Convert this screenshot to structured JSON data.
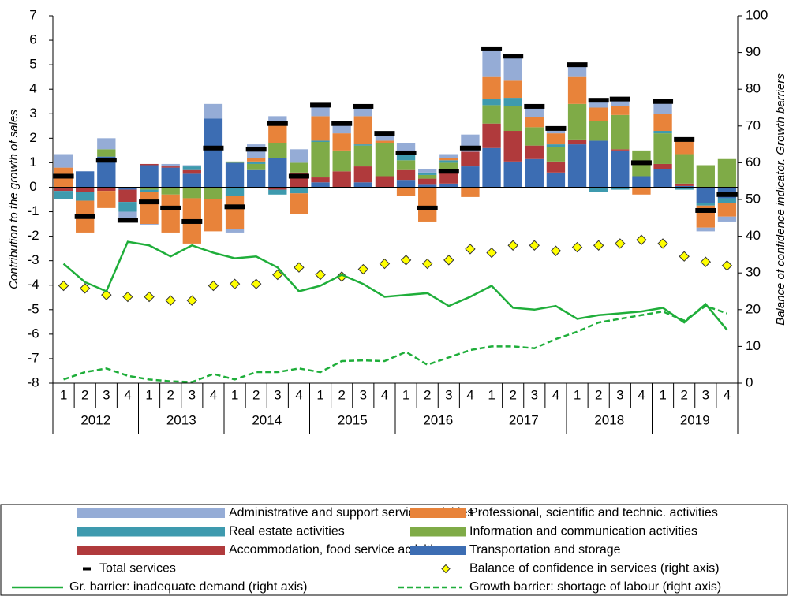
{
  "chart_data": {
    "type": "bar",
    "stacked": true,
    "ylabel": "Contribution to the growth of sales",
    "y2label": "Balance of confidence indicator. Growth barriers",
    "categories": [
      "1",
      "2",
      "3",
      "4",
      "1",
      "2",
      "3",
      "4",
      "1",
      "2",
      "3",
      "4",
      "1",
      "2",
      "3",
      "4",
      "1",
      "2",
      "3",
      "4",
      "1",
      "2",
      "3",
      "4",
      "1",
      "2",
      "3",
      "4",
      "1",
      "2",
      "3",
      "4"
    ],
    "years": [
      "2012",
      "2013",
      "2014",
      "2015",
      "2016",
      "2017",
      "2018",
      "2019"
    ],
    "ylim": [
      -8,
      7
    ],
    "yticks": [
      -8,
      -7,
      -6,
      -5,
      -4,
      -3,
      -2,
      -1,
      0,
      1,
      2,
      3,
      4,
      5,
      6,
      7
    ],
    "y2lim": [
      0,
      100
    ],
    "y2ticks": [
      0,
      10,
      20,
      30,
      40,
      50,
      60,
      70,
      80,
      90,
      100
    ],
    "series": [
      {
        "name": "Administrative and support service activities",
        "type": "bar",
        "color": "#95acd6",
        "values": [
          0.55,
          0,
          0.45,
          -0.35,
          -0.05,
          0.1,
          0.05,
          0.6,
          -0.15,
          0.55,
          0.3,
          0.55,
          0.5,
          0.45,
          0.4,
          0.3,
          0.45,
          0.15,
          0.15,
          0.7,
          1.15,
          1.05,
          0.5,
          0.25,
          0.5,
          0.35,
          0.35,
          0,
          0.5,
          0.1,
          -0.15,
          -0.2
        ]
      },
      {
        "name": "Professional, scientific and technic. activities",
        "type": "bar",
        "color": "#e8833a",
        "values": [
          0.8,
          -1.3,
          -0.7,
          0,
          -1.3,
          -1.55,
          -1.85,
          -1.3,
          -1.35,
          0.15,
          0.8,
          -0.85,
          1.0,
          0.7,
          1.15,
          0.1,
          -0.35,
          -1.4,
          0.1,
          -0.4,
          0.9,
          0.7,
          0.4,
          0.45,
          1.1,
          0.55,
          0.35,
          -0.25,
          0.7,
          0.55,
          -0.9,
          -0.55
        ]
      },
      {
        "name": "Real estate activities",
        "type": "bar",
        "color": "#3e9aae",
        "values": [
          -0.35,
          -0.35,
          0,
          -0.4,
          -0.1,
          0,
          0.15,
          0,
          -0.35,
          0.1,
          -0.2,
          -0.25,
          0.05,
          0,
          0.05,
          0,
          0.25,
          0.1,
          0.1,
          0,
          0.25,
          0.35,
          0,
          0.1,
          0,
          -0.2,
          -0.1,
          -0.05,
          0.1,
          -0.1,
          -0.1,
          -0.2
        ]
      },
      {
        "name": "Information and communication activities",
        "type": "bar",
        "color": "#7fab47",
        "values": [
          0,
          0,
          0.3,
          0,
          -0.1,
          -0.3,
          -0.45,
          -0.5,
          0.05,
          0.25,
          0.6,
          0.4,
          1.45,
          0.85,
          0.85,
          1.35,
          0.4,
          0.15,
          0.3,
          0,
          0.75,
          1.0,
          0.75,
          0.6,
          1.45,
          0.8,
          1.4,
          1.05,
          1.25,
          1.2,
          0.9,
          1.15
        ]
      },
      {
        "name": "Accommodation, food service activities",
        "type": "bar",
        "color": "#b03a3c",
        "values": [
          -0.1,
          -0.2,
          -0.15,
          -0.5,
          0.05,
          0.05,
          0.15,
          0,
          0,
          0,
          -0.1,
          0.6,
          0.2,
          0.65,
          0.65,
          0.45,
          0.4,
          0.25,
          0.55,
          0.6,
          1.0,
          1.25,
          0.55,
          0.45,
          0.2,
          0,
          0.05,
          0,
          0.2,
          0.1,
          0,
          0
        ]
      },
      {
        "name": "Transportation and storage",
        "type": "bar",
        "color": "#3c6db3",
        "values": [
          -0.05,
          0.65,
          1.25,
          -0.1,
          0.9,
          0.8,
          0.55,
          2.8,
          1.0,
          0.7,
          1.2,
          0,
          0.2,
          0,
          0.2,
          0,
          0.3,
          0.1,
          0.15,
          0.85,
          1.6,
          1.05,
          1.15,
          0.6,
          1.75,
          1.9,
          1.5,
          0.45,
          0.75,
          0.05,
          -0.65,
          -0.45
        ]
      },
      {
        "name": "Total services",
        "type": "dash",
        "color": "#000000",
        "values": [
          0.45,
          -1.2,
          1.1,
          -1.35,
          -0.6,
          -0.85,
          -1.4,
          1.6,
          -0.8,
          1.55,
          2.6,
          0.45,
          3.35,
          2.6,
          3.3,
          2.2,
          1.4,
          -0.85,
          0.65,
          1.6,
          5.65,
          5.35,
          3.3,
          2.4,
          5.0,
          3.55,
          3.6,
          1.0,
          3.5,
          1.95,
          -0.95,
          -0.3
        ]
      },
      {
        "name": "Balance of confidence in services (right axis)",
        "type": "scatter",
        "axis": "y2",
        "color": "#ffff00",
        "values": [
          26.5,
          25.8,
          24,
          23.5,
          23.5,
          22.5,
          22.5,
          26.5,
          27,
          27,
          29.5,
          31.5,
          29.5,
          29,
          31,
          32.5,
          33.5,
          32.5,
          33.5,
          36.5,
          35.5,
          37.5,
          37.5,
          36,
          37,
          37.5,
          38,
          39,
          38,
          34.5,
          33,
          32
        ]
      },
      {
        "name": "Gr. barrier: inadequate demand (right axis)",
        "type": "line",
        "axis": "y2",
        "color": "#1fae3a",
        "values": [
          32.5,
          27.5,
          25,
          38.5,
          37.5,
          34.5,
          37.5,
          35.5,
          34,
          34.5,
          31.5,
          25,
          26.5,
          29.5,
          27,
          23.5,
          24,
          24.5,
          21,
          23.5,
          26.5,
          20.5,
          20,
          21,
          17.5,
          18.5,
          19,
          19.5,
          20.5,
          16.5,
          21.5,
          14.5
        ]
      },
      {
        "name": "Growth barrier: shortage of labour (right axis)",
        "type": "line",
        "dashed": true,
        "axis": "y2",
        "color": "#1fae3a",
        "values": [
          1,
          3,
          4,
          2,
          1,
          0.5,
          0.3,
          2.5,
          1,
          3,
          3,
          4,
          3,
          6,
          6.2,
          6,
          8.5,
          5,
          7,
          9,
          10,
          10,
          9.5,
          12,
          14,
          16.5,
          17.5,
          18.5,
          19.5,
          17,
          21,
          19
        ]
      }
    ]
  }
}
